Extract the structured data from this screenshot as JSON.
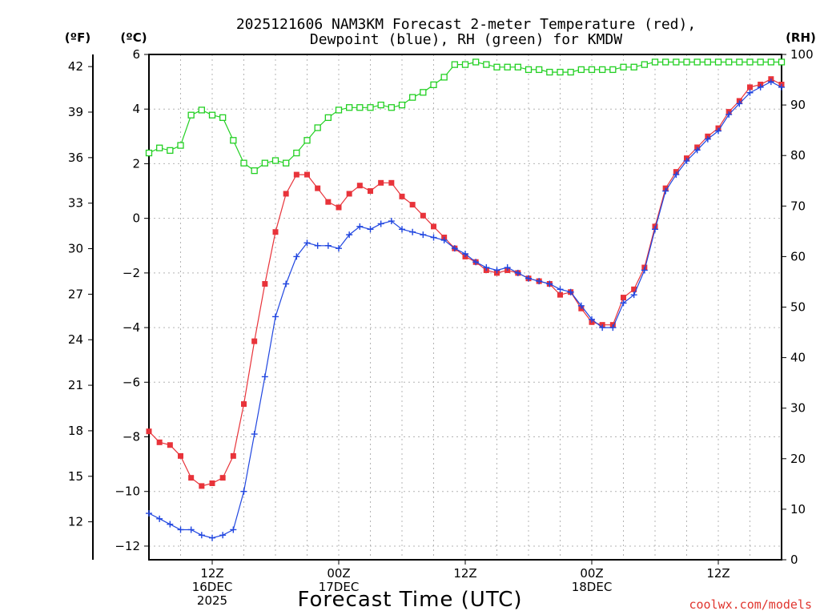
{
  "chart_data": {
    "type": "line",
    "title_line1": "2025121606 NAM3KM Forecast 2-meter Temperature (red),",
    "title_line2": "Dewpoint (blue), RH (green) for KMDW",
    "xlabel": "Forecast Time (UTC)",
    "credit": "coolwx.com/models",
    "units": {
      "fahrenheit": "(ºF)",
      "celsius": "(ºC)",
      "rh": "(RH)"
    },
    "x_range_hours": [
      0,
      60
    ],
    "y_celsius_range": [
      -12.5,
      6
    ],
    "y_rh_range": [
      0,
      100
    ],
    "celsius_ticks": [
      "6",
      "4",
      "2",
      "0",
      "−2",
      "−4",
      "−6",
      "−8",
      "−10",
      "−12"
    ],
    "celsius_tick_values": [
      6,
      4,
      2,
      0,
      -2,
      -4,
      -6,
      -8,
      -10,
      -12
    ],
    "fahrenheit_ticks": [
      "42",
      "39",
      "36",
      "33",
      "30",
      "27",
      "24",
      "21",
      "18",
      "15",
      "12"
    ],
    "fahrenheit_tick_values": [
      42,
      39,
      36,
      33,
      30,
      27,
      24,
      21,
      18,
      15,
      12
    ],
    "rh_ticks": [
      "100",
      "90",
      "80",
      "70",
      "60",
      "50",
      "40",
      "30",
      "20",
      "10",
      "0"
    ],
    "rh_tick_values": [
      100,
      90,
      80,
      70,
      60,
      50,
      40,
      30,
      20,
      10,
      0
    ],
    "x_ticks": [
      {
        "hour": 6,
        "lines": [
          "12Z",
          "16DEC",
          "2025"
        ]
      },
      {
        "hour": 18,
        "lines": [
          "00Z",
          "17DEC"
        ]
      },
      {
        "hour": 30,
        "lines": [
          "12Z"
        ]
      },
      {
        "hour": 42,
        "lines": [
          "00Z",
          "18DEC"
        ]
      },
      {
        "hour": 54,
        "lines": [
          "12Z"
        ]
      }
    ],
    "series": [
      {
        "name": "Temperature (°C)",
        "color": "#e8333a",
        "marker": "square",
        "values": [
          -7.8,
          -8.2,
          -8.3,
          -8.7,
          -9.5,
          -9.8,
          -9.7,
          -9.5,
          -8.7,
          -6.8,
          -4.5,
          -2.4,
          -0.5,
          0.9,
          1.6,
          1.6,
          1.1,
          0.6,
          0.4,
          0.9,
          1.2,
          1.0,
          1.3,
          1.3,
          0.8,
          0.5,
          0.1,
          -0.3,
          -0.7,
          -1.1,
          -1.4,
          -1.6,
          -1.9,
          -2.0,
          -1.9,
          -2.0,
          -2.2,
          -2.3,
          -2.4,
          -2.8,
          -2.7,
          -3.3,
          -3.8,
          -3.9,
          -3.9,
          -2.9,
          -2.6,
          -1.8,
          -0.3,
          1.1,
          1.7,
          2.2,
          2.6,
          3.0,
          3.3,
          3.9,
          4.3,
          4.8,
          4.9,
          5.1,
          4.9
        ]
      },
      {
        "name": "Dewpoint (°C)",
        "color": "#2046e0",
        "marker": "plus",
        "values": [
          -10.8,
          -11.0,
          -11.2,
          -11.4,
          -11.4,
          -11.6,
          -11.7,
          -11.6,
          -11.4,
          -10.0,
          -7.9,
          -5.8,
          -3.6,
          -2.4,
          -1.4,
          -0.9,
          -1.0,
          -1.0,
          -1.1,
          -0.6,
          -0.3,
          -0.4,
          -0.2,
          -0.1,
          -0.4,
          -0.5,
          -0.6,
          -0.7,
          -0.8,
          -1.1,
          -1.3,
          -1.6,
          -1.8,
          -1.9,
          -1.8,
          -2.0,
          -2.2,
          -2.3,
          -2.4,
          -2.6,
          -2.7,
          -3.2,
          -3.7,
          -4.0,
          -4.0,
          -3.1,
          -2.8,
          -1.9,
          -0.4,
          1.0,
          1.6,
          2.1,
          2.5,
          2.9,
          3.2,
          3.8,
          4.2,
          4.6,
          4.8,
          5.0,
          4.8
        ]
      },
      {
        "name": "RH (%)",
        "color": "#22d022",
        "marker": "square-open",
        "values": [
          80.5,
          81.5,
          81.0,
          82.0,
          88.0,
          89.0,
          88.0,
          87.5,
          83.0,
          78.5,
          77.0,
          78.5,
          79.0,
          78.5,
          80.5,
          83.0,
          85.5,
          87.5,
          89.0,
          89.5,
          89.5,
          89.5,
          90.0,
          89.5,
          90.0,
          91.5,
          92.5,
          94.0,
          95.5,
          98.0,
          98.0,
          98.5,
          98.0,
          97.5,
          97.5,
          97.5,
          97.0,
          97.0,
          96.5,
          96.5,
          96.5,
          97.0,
          97.0,
          97.0,
          97.0,
          97.5,
          97.5,
          98.0,
          98.5,
          98.5,
          98.5,
          98.5,
          98.5,
          98.5,
          98.5,
          98.5,
          98.5,
          98.5,
          98.5,
          98.5,
          98.5
        ]
      }
    ]
  }
}
